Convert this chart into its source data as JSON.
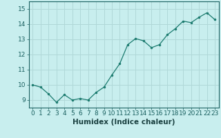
{
  "x": [
    0,
    1,
    2,
    3,
    4,
    5,
    6,
    7,
    8,
    9,
    10,
    11,
    12,
    13,
    14,
    15,
    16,
    17,
    18,
    19,
    20,
    21,
    22,
    23
  ],
  "y": [
    10.0,
    9.85,
    9.4,
    8.85,
    9.35,
    9.0,
    9.1,
    9.0,
    9.5,
    9.85,
    10.65,
    11.4,
    12.65,
    13.05,
    12.9,
    12.45,
    12.65,
    13.3,
    13.7,
    14.2,
    14.1,
    14.45,
    14.75,
    14.3
  ],
  "xlim": [
    -0.5,
    23.5
  ],
  "ylim": [
    8.5,
    15.5
  ],
  "yticks": [
    9,
    10,
    11,
    12,
    13,
    14,
    15
  ],
  "xticks": [
    0,
    1,
    2,
    3,
    4,
    5,
    6,
    7,
    8,
    9,
    10,
    11,
    12,
    13,
    14,
    15,
    16,
    17,
    18,
    19,
    20,
    21,
    22,
    23
  ],
  "xlabel": "Humidex (Indice chaleur)",
  "line_color": "#1a7a6e",
  "marker_color": "#1a7a6e",
  "bg_color": "#c8eeee",
  "grid_color": "#b0d8d8",
  "tick_fontsize": 6.5,
  "xlabel_fontsize": 7.5
}
